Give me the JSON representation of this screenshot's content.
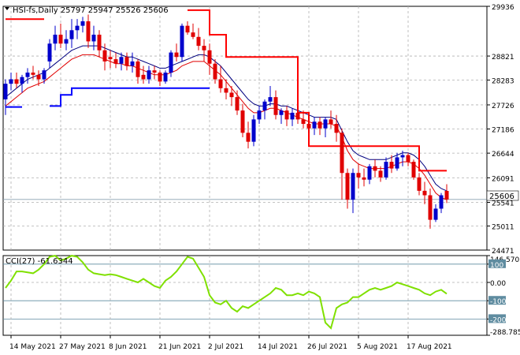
{
  "chart_data": [
    {
      "type": "candlestick",
      "title": "HSI-fs,Daily  25797 25947 25526 25606",
      "ohlc_header": {
        "open": 25797,
        "high": 25947,
        "low": 25526,
        "close": 25606
      },
      "last_price_label": "25606",
      "y_ticks": [
        29936,
        28821,
        28283,
        27726,
        27186,
        26644,
        26091,
        25541,
        25011,
        24471
      ],
      "ylim": [
        24471,
        29936
      ],
      "x_tick_labels": [
        "14 May 2021",
        "27 May 2021",
        "8 Jun 2021",
        "21 Jun 2021",
        "2 Jul 2021",
        "14 Jul 2021",
        "26 Jul 2021",
        "5 Aug 2021",
        "17 Aug 2021"
      ],
      "x_tick_index": [
        1,
        10,
        19,
        28,
        37,
        46,
        55,
        64,
        73
      ],
      "x_count": 81,
      "grid": true,
      "candles": [
        [
          27850,
          28300,
          27500,
          28200
        ],
        [
          28200,
          28450,
          28050,
          28300
        ],
        [
          28300,
          28450,
          28100,
          28200
        ],
        [
          28200,
          28400,
          28000,
          28350
        ],
        [
          28350,
          28550,
          28200,
          28450
        ],
        [
          28450,
          28600,
          28300,
          28400
        ],
        [
          28400,
          28500,
          28150,
          28300
        ],
        [
          28300,
          28550,
          28200,
          28500
        ],
        [
          28700,
          29200,
          28550,
          29100
        ],
        [
          29100,
          29500,
          28950,
          29300
        ],
        [
          29300,
          29550,
          29000,
          29100
        ],
        [
          29100,
          29400,
          28950,
          29200
        ],
        [
          29200,
          29650,
          29000,
          29400
        ],
        [
          29400,
          29650,
          29200,
          29500
        ],
        [
          29500,
          29700,
          29350,
          29600
        ],
        [
          29600,
          29750,
          29000,
          29150
        ],
        [
          29150,
          29500,
          28950,
          29300
        ],
        [
          29300,
          29400,
          28800,
          28950
        ],
        [
          28950,
          29100,
          28500,
          28700
        ],
        [
          28800,
          28950,
          28550,
          28750
        ],
        [
          28750,
          28900,
          28550,
          28650
        ],
        [
          28650,
          28900,
          28500,
          28800
        ],
        [
          28800,
          28900,
          28500,
          28600
        ],
        [
          28600,
          28900,
          28450,
          28700
        ],
        [
          28700,
          28750,
          28200,
          28350
        ],
        [
          28400,
          28600,
          28200,
          28300
        ],
        [
          28300,
          28600,
          28200,
          28500
        ],
        [
          28500,
          28600,
          28300,
          28450
        ],
        [
          28450,
          28500,
          28150,
          28250
        ],
        [
          28250,
          28500,
          28200,
          28450
        ],
        [
          28450,
          28950,
          28350,
          28900
        ],
        [
          28900,
          29100,
          28700,
          28800
        ],
        [
          28800,
          29550,
          28700,
          29500
        ],
        [
          29500,
          29600,
          29300,
          29350
        ],
        [
          29350,
          29550,
          29200,
          29250
        ],
        [
          29250,
          29450,
          28950,
          29050
        ],
        [
          29050,
          29200,
          28700,
          28950
        ],
        [
          28950,
          29100,
          28400,
          28650
        ],
        [
          28650,
          28750,
          28200,
          28300
        ],
        [
          28300,
          28600,
          28000,
          28100
        ],
        [
          28100,
          28300,
          27850,
          28000
        ],
        [
          28000,
          28150,
          27700,
          27900
        ],
        [
          27900,
          28050,
          27500,
          27600
        ],
        [
          27600,
          27750,
          27000,
          27100
        ],
        [
          27100,
          27350,
          26750,
          26900
        ],
        [
          26900,
          27500,
          26800,
          27400
        ],
        [
          27400,
          27700,
          27300,
          27600
        ],
        [
          27600,
          27850,
          27400,
          27800
        ],
        [
          27800,
          28150,
          27700,
          27900
        ],
        [
          27900,
          28050,
          27400,
          27500
        ],
        [
          27500,
          27650,
          27300,
          27600
        ],
        [
          27600,
          27700,
          27250,
          27400
        ],
        [
          27400,
          27650,
          27250,
          27550
        ],
        [
          27550,
          27700,
          27300,
          27400
        ],
        [
          27400,
          27600,
          27200,
          27300
        ],
        [
          27300,
          27500,
          27100,
          27200
        ],
        [
          27200,
          27450,
          27050,
          27350
        ],
        [
          27350,
          27450,
          27050,
          27200
        ],
        [
          27200,
          27450,
          27000,
          27400
        ],
        [
          27400,
          27600,
          27200,
          27300
        ],
        [
          27300,
          27500,
          26900,
          27100
        ],
        [
          27100,
          27200,
          25600,
          26200
        ],
        [
          26200,
          26300,
          25400,
          25600
        ],
        [
          25600,
          26300,
          25300,
          26200
        ],
        [
          26200,
          26400,
          25850,
          26100
        ],
        [
          26100,
          26300,
          25900,
          26050
        ],
        [
          26050,
          26400,
          25950,
          26350
        ],
        [
          26350,
          26500,
          26100,
          26250
        ],
        [
          26250,
          26350,
          26000,
          26100
        ],
        [
          26100,
          26550,
          26050,
          26450
        ],
        [
          26450,
          26600,
          26200,
          26300
        ],
        [
          26300,
          26650,
          26250,
          26550
        ],
        [
          26550,
          26700,
          26350,
          26600
        ],
        [
          26600,
          26650,
          26350,
          26450
        ],
        [
          26450,
          26500,
          26050,
          26100
        ],
        [
          26100,
          26200,
          25700,
          25800
        ],
        [
          25800,
          26000,
          25500,
          25700
        ],
        [
          25700,
          25850,
          24950,
          25150
        ],
        [
          25150,
          25500,
          25100,
          25400
        ],
        [
          25400,
          25750,
          25300,
          25700
        ],
        [
          25797,
          25947,
          25526,
          25606
        ]
      ],
      "ma_fast": [
        27700,
        27800,
        27900,
        28000,
        28100,
        28150,
        28200,
        28250,
        28350,
        28450,
        28550,
        28650,
        28750,
        28800,
        28850,
        28850,
        28850,
        28800,
        28750,
        28700,
        28650,
        28650,
        28600,
        28600,
        28550,
        28500,
        28450,
        28400,
        28400,
        28400,
        28450,
        28500,
        28600,
        28650,
        28700,
        28700,
        28700,
        28600,
        28500,
        28400,
        28250,
        28100,
        27950,
        27800,
        27650,
        27550,
        27550,
        27600,
        27650,
        27650,
        27600,
        27550,
        27500,
        27450,
        27400,
        27350,
        27300,
        27300,
        27300,
        27300,
        27250,
        27000,
        26700,
        26500,
        26400,
        26350,
        26300,
        26300,
        26300,
        26300,
        26350,
        26400,
        26450,
        26450,
        26400,
        26300,
        26150,
        25950,
        25750,
        25650,
        25600
      ],
      "ma_slow": [
        27900,
        28000,
        28100,
        28200,
        28300,
        28350,
        28400,
        28450,
        28550,
        28650,
        28750,
        28850,
        28950,
        29000,
        29050,
        29050,
        29050,
        29050,
        29000,
        28950,
        28900,
        28850,
        28800,
        28800,
        28750,
        28700,
        28650,
        28600,
        28550,
        28550,
        28600,
        28650,
        28700,
        28750,
        28800,
        28850,
        28850,
        28800,
        28700,
        28600,
        28450,
        28300,
        28150,
        28000,
        27850,
        27750,
        27700,
        27700,
        27750,
        27750,
        27700,
        27700,
        27650,
        27600,
        27550,
        27500,
        27450,
        27450,
        27450,
        27450,
        27400,
        27150,
        26900,
        26700,
        26600,
        26550,
        26500,
        26500,
        26500,
        26500,
        26550,
        26600,
        26650,
        26650,
        26600,
        26500,
        26350,
        26150,
        25950,
        25850,
        25800
      ],
      "support_line": [
        {
          "x0": 0,
          "x1": 3,
          "y": 27680
        },
        {
          "x0": 8,
          "x1": 10,
          "y": 27700
        },
        {
          "x0": 10,
          "x1": 12,
          "y": 27950
        },
        {
          "x0": 12,
          "x1": 37,
          "y": 28100
        }
      ],
      "resistance_line": [
        {
          "x0": 0,
          "x1": 7,
          "y": 29650
        },
        {
          "x0": 33,
          "x1": 37,
          "y": 29850
        },
        {
          "x0": 37,
          "x1": 40,
          "y": 29300
        },
        {
          "x0": 40,
          "x1": 53,
          "y": 28800
        },
        {
          "x0": 53,
          "x1": 55,
          "y": 27550
        },
        {
          "x0": 55,
          "x1": 75,
          "y": 26800
        },
        {
          "x0": 75,
          "x1": 77,
          "y": 26250
        },
        {
          "x0": 77,
          "x1": 80,
          "y": 26250
        }
      ]
    },
    {
      "type": "line",
      "title": "CCI(27) -61.6344",
      "y_ticks": [
        146.5705,
        100,
        0,
        -100,
        -200,
        -288.785
      ],
      "y_tick_labels": [
        "146.5705",
        "100",
        "0.00",
        "-100",
        "-200",
        "-288.785"
      ],
      "ylim": [
        -288.785,
        146.5705
      ],
      "levels": [
        100,
        -100,
        -200
      ],
      "series": [
        {
          "values": [
            -30,
            10,
            60,
            60,
            55,
            50,
            70,
            100,
            140,
            146,
            120,
            130,
            146,
            140,
            110,
            70,
            50,
            45,
            40,
            45,
            40,
            30,
            20,
            10,
            0,
            20,
            0,
            -20,
            -30,
            10,
            30,
            60,
            100,
            140,
            130,
            80,
            30,
            -70,
            -110,
            -120,
            -100,
            -140,
            -160,
            -130,
            -140,
            -120,
            -100,
            -80,
            -60,
            -30,
            -40,
            -70,
            -70,
            -60,
            -70,
            -50,
            -60,
            -80,
            -220,
            -250,
            -140,
            -120,
            -110,
            -80,
            -80,
            -60,
            -40,
            -30,
            -40,
            -30,
            -20,
            0,
            -10,
            -20,
            -30,
            -40,
            -60,
            -70,
            -50,
            -40,
            -62
          ]
        }
      ]
    }
  ]
}
